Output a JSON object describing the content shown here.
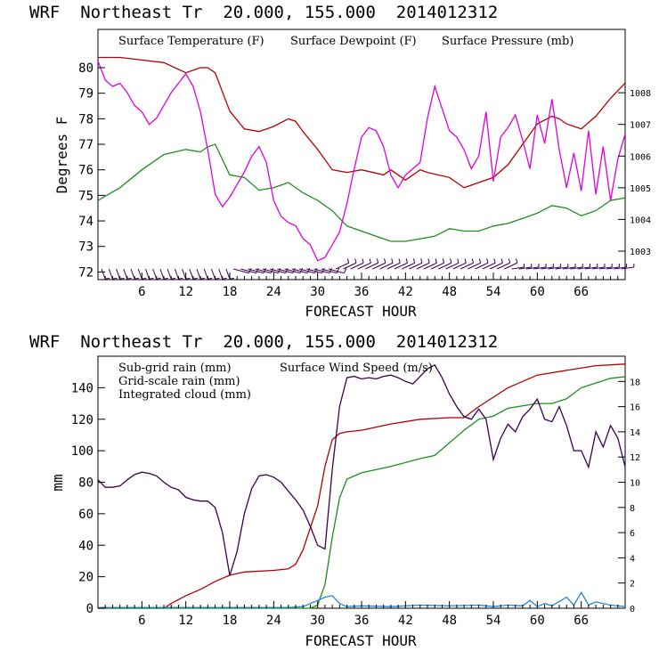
{
  "chart_data": [
    {
      "type": "line",
      "title": "WRF  Northeast Tr  20.000, 155.000  2014012312",
      "xlabel": "FORECAST HOUR",
      "ylabel": "Degrees F",
      "xlim": [
        0,
        72
      ],
      "ylim": [
        71.7,
        81.5
      ],
      "y2lim": [
        1002.1,
        1010.0
      ],
      "xticks": [
        6,
        12,
        18,
        24,
        30,
        36,
        42,
        48,
        54,
        60,
        66
      ],
      "yticks": [
        72,
        73,
        74,
        75,
        76,
        77,
        78,
        79,
        80
      ],
      "y2ticks": [
        1003,
        1004,
        1005,
        1006,
        1007,
        1008
      ],
      "wind_barbs_row": true,
      "series": [
        {
          "name": "Surface Temperature (F)",
          "color": "#b40000",
          "axis": "left",
          "x": [
            0,
            3,
            6,
            9,
            12,
            14,
            15,
            16,
            18,
            20,
            22,
            24,
            26,
            27,
            28,
            30,
            32,
            34,
            36,
            39,
            40,
            42,
            44,
            45,
            48,
            50,
            52,
            54,
            56,
            58,
            60,
            62,
            63,
            64,
            66,
            68,
            70,
            72
          ],
          "y": [
            80.4,
            80.4,
            80.3,
            80.2,
            79.8,
            80.0,
            80.0,
            79.8,
            78.3,
            77.6,
            77.5,
            77.7,
            78.0,
            77.9,
            77.5,
            76.8,
            76.0,
            75.9,
            76.0,
            75.8,
            76.0,
            75.6,
            76.0,
            75.9,
            75.7,
            75.3,
            75.5,
            75.7,
            76.2,
            77.0,
            77.8,
            78.1,
            78.0,
            77.8,
            77.6,
            78.1,
            78.8,
            79.4
          ]
        },
        {
          "name": "Surface Dewpoint (F)",
          "color": "#1e8c1e",
          "axis": "left",
          "x": [
            0,
            3,
            6,
            9,
            12,
            14,
            15,
            16,
            18,
            20,
            22,
            24,
            26,
            28,
            30,
            32,
            34,
            36,
            38,
            40,
            42,
            44,
            46,
            48,
            50,
            52,
            54,
            56,
            58,
            60,
            62,
            64,
            66,
            68,
            70,
            72
          ],
          "y": [
            74.8,
            75.3,
            76.0,
            76.6,
            76.8,
            76.7,
            76.9,
            77.0,
            75.8,
            75.7,
            75.2,
            75.3,
            75.5,
            75.1,
            74.8,
            74.4,
            73.8,
            73.6,
            73.4,
            73.2,
            73.2,
            73.3,
            73.4,
            73.7,
            73.6,
            73.6,
            73.8,
            73.9,
            74.1,
            74.3,
            74.6,
            74.5,
            74.2,
            74.4,
            74.8,
            74.9
          ]
        },
        {
          "name": "Surface Pressure (mb)",
          "color": "#e000e0",
          "axis": "right",
          "x": [
            0,
            1,
            2,
            3,
            4,
            5,
            6,
            7,
            8,
            9,
            10,
            11,
            12,
            13,
            14,
            15,
            16,
            17,
            18,
            19,
            20,
            21,
            22,
            23,
            24,
            25,
            26,
            27,
            28,
            29,
            30,
            31,
            32,
            33,
            34,
            35,
            36,
            37,
            38,
            39,
            40,
            41,
            42,
            43,
            44,
            45,
            46,
            47,
            48,
            49,
            50,
            51,
            52,
            53,
            54,
            55,
            56,
            57,
            58,
            59,
            60,
            61,
            62,
            63,
            64,
            65,
            66,
            67,
            68,
            69,
            70,
            71,
            72
          ],
          "y": [
            1009.0,
            1008.4,
            1008.2,
            1008.3,
            1008.0,
            1007.6,
            1007.4,
            1007.0,
            1007.2,
            1007.6,
            1008.0,
            1008.3,
            1008.6,
            1008.2,
            1007.4,
            1006.2,
            1004.8,
            1004.4,
            1004.7,
            1005.1,
            1005.5,
            1006.0,
            1006.3,
            1005.8,
            1004.6,
            1004.1,
            1003.9,
            1003.8,
            1003.4,
            1003.2,
            1002.7,
            1002.8,
            1003.2,
            1003.6,
            1004.5,
            1005.6,
            1006.6,
            1006.9,
            1006.8,
            1006.3,
            1005.4,
            1005.0,
            1005.4,
            1005.6,
            1005.8,
            1007.2,
            1008.2,
            1007.5,
            1006.8,
            1006.6,
            1006.2,
            1005.6,
            1006.0,
            1007.4,
            1005.2,
            1006.6,
            1006.9,
            1007.3,
            1006.5,
            1005.6,
            1007.3,
            1006.4,
            1007.8,
            1006.2,
            1005.0,
            1006.1,
            1004.9,
            1006.8,
            1004.8,
            1006.3,
            1004.6,
            1005.9,
            1006.7
          ]
        }
      ]
    },
    {
      "type": "line",
      "title": "WRF  Northeast Tr  20.000, 155.000  2014012312",
      "xlabel": "FORECAST HOUR",
      "ylabel": "mm",
      "xlim": [
        0,
        72
      ],
      "ylim": [
        0,
        160
      ],
      "y2lim": [
        0,
        20
      ],
      "xticks": [
        6,
        12,
        18,
        24,
        30,
        36,
        42,
        48,
        54,
        60,
        66
      ],
      "yticks": [
        0,
        20,
        40,
        60,
        80,
        100,
        120,
        140
      ],
      "y2ticks": [
        0,
        2,
        4,
        6,
        8,
        10,
        12,
        14,
        16,
        18
      ],
      "series": [
        {
          "name": "Sub-grid rain (mm)",
          "color": "#b40000",
          "axis": "left",
          "x": [
            0,
            9,
            10,
            12,
            14,
            16,
            18,
            20,
            24,
            26,
            27,
            28,
            30,
            31,
            32,
            33,
            34,
            36,
            40,
            44,
            48,
            50,
            52,
            56,
            60,
            64,
            68,
            72
          ],
          "y": [
            0,
            0,
            3,
            8,
            12,
            17,
            21,
            23,
            24,
            25,
            28,
            37,
            65,
            90,
            107,
            111,
            112,
            113,
            117,
            120,
            121,
            121,
            128,
            140,
            148,
            151,
            154,
            155
          ]
        },
        {
          "name": "Grid-scale rain (mm)",
          "color": "#1e8c1e",
          "axis": "left",
          "x": [
            0,
            29,
            30,
            31,
            32,
            33,
            34,
            36,
            40,
            44,
            46,
            48,
            50,
            52,
            54,
            56,
            60,
            62,
            64,
            66,
            68,
            70,
            72
          ],
          "y": [
            0,
            0,
            2,
            15,
            45,
            70,
            82,
            86,
            90,
            95,
            97,
            105,
            113,
            120,
            122,
            127,
            130,
            130,
            133,
            140,
            143,
            146,
            147
          ]
        },
        {
          "name": "Integrated cloud (mm)",
          "color": "#2288d8",
          "axis": "left",
          "x": [
            0,
            26,
            28,
            30,
            31,
            32,
            33,
            34,
            36,
            40,
            44,
            48,
            52,
            54,
            56,
            58,
            59,
            60,
            61,
            62,
            64,
            65,
            66,
            67,
            68,
            70,
            72
          ],
          "y": [
            0.5,
            0.5,
            1,
            5,
            7,
            8,
            3,
            1,
            1.5,
            1,
            2,
            1.5,
            2,
            1,
            2,
            1.5,
            5,
            1,
            3,
            1.5,
            7,
            2,
            10,
            2,
            4,
            2,
            1
          ]
        },
        {
          "name": "Surface Wind Speed (m/s)",
          "color": "#3c0050",
          "axis": "right",
          "x": [
            0,
            1,
            2,
            3,
            4,
            5,
            6,
            7,
            8,
            9,
            10,
            11,
            12,
            13,
            14,
            15,
            16,
            17,
            18,
            19,
            20,
            21,
            22,
            23,
            24,
            25,
            26,
            27,
            28,
            29,
            30,
            31,
            32,
            33,
            34,
            35,
            36,
            37,
            38,
            39,
            40,
            41,
            42,
            43,
            44,
            45,
            46,
            47,
            48,
            49,
            50,
            51,
            52,
            53,
            54,
            55,
            56,
            57,
            58,
            59,
            60,
            61,
            62,
            63,
            64,
            65,
            66,
            67,
            68,
            69,
            70,
            71,
            72
          ],
          "y": [
            10.2,
            9.6,
            9.6,
            9.7,
            10.2,
            10.6,
            10.8,
            10.7,
            10.5,
            10.0,
            9.6,
            9.4,
            8.8,
            8.6,
            8.5,
            8.5,
            8.0,
            6.0,
            2.6,
            4.5,
            7.5,
            9.5,
            10.5,
            10.6,
            10.4,
            10.0,
            9.3,
            8.6,
            7.8,
            6.5,
            5.0,
            4.7,
            11.0,
            16.0,
            18.3,
            18.4,
            18.2,
            18.3,
            18.2,
            18.4,
            18.5,
            18.3,
            18.0,
            17.8,
            18.4,
            19.0,
            19.3,
            18.3,
            17.0,
            16.0,
            15.2,
            15.0,
            15.8,
            15.0,
            11.8,
            13.5,
            14.6,
            14.0,
            15.2,
            15.8,
            16.6,
            15.0,
            14.8,
            16.0,
            14.5,
            12.5,
            12.5,
            11.2,
            14.0,
            12.8,
            14.5,
            13.5,
            11.2
          ]
        }
      ]
    }
  ]
}
